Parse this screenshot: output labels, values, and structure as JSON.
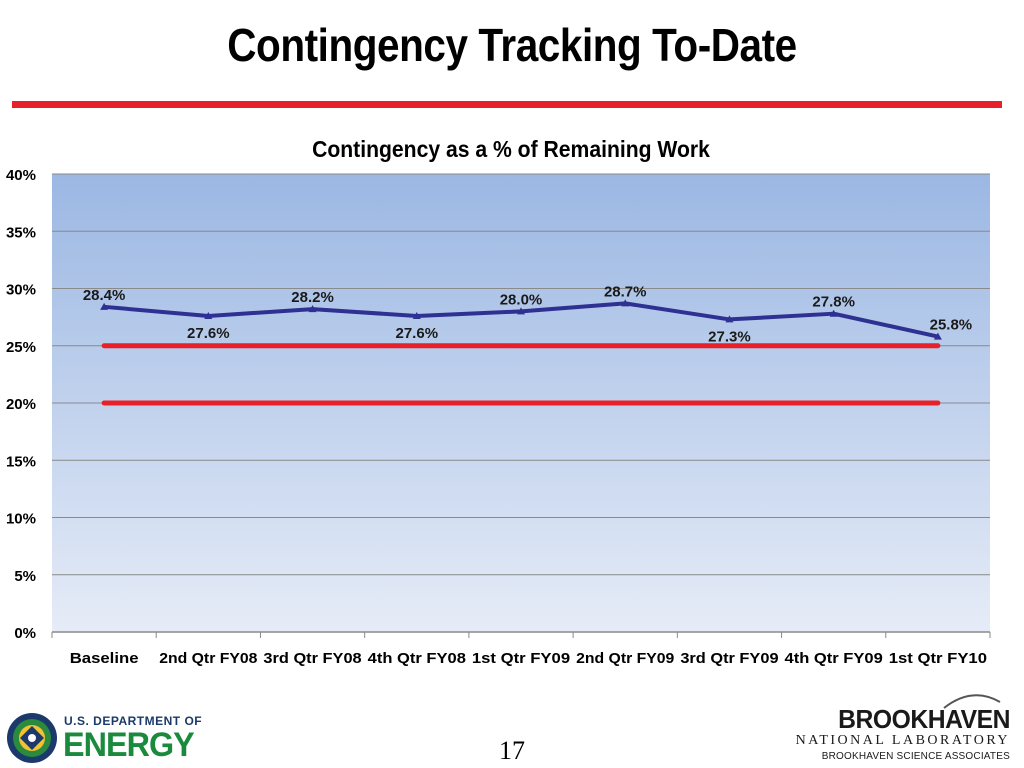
{
  "slide": {
    "title": "Contingency Tracking To-Date",
    "page_number": "17"
  },
  "footer": {
    "doe_line1": "U.S. DEPARTMENT OF",
    "doe_line2": "ENERGY",
    "bnl_name": "BROOKHAVEN",
    "bnl_sub": "NATIONAL LABORATORY",
    "bnl_assoc": "BROOKHAVEN SCIENCE ASSOCIATES"
  },
  "colors": {
    "series": "#2e3192",
    "threshold": "#e8202a",
    "plot_top": "#9bb7e3",
    "plot_bottom": "#e6ecf7",
    "title_rule": "#e8202a"
  },
  "chart_data": {
    "type": "line",
    "title": "Contingency as a % of Remaining Work",
    "categories": [
      "Baseline",
      "2nd Qtr FY08",
      "3rd Qtr FY08",
      "4th Qtr FY08",
      "1st Qtr FY09",
      "2nd Qtr FY09",
      "3rd Qtr FY09",
      "4th Qtr FY09",
      "1st Qtr FY10"
    ],
    "y_ticks": [
      "0%",
      "5%",
      "10%",
      "15%",
      "20%",
      "25%",
      "30%",
      "35%",
      "40%"
    ],
    "ylim": [
      0,
      40
    ],
    "grid": true,
    "series": [
      {
        "values": [
          28.4,
          27.6,
          28.2,
          27.6,
          28.0,
          28.7,
          27.3,
          27.8,
          25.8
        ],
        "labels": [
          "28.4%",
          "27.6%",
          "28.2%",
          "27.6%",
          "28.0%",
          "28.7%",
          "27.3%",
          "27.8%",
          "25.8%"
        ]
      }
    ],
    "reference_lines": [
      25,
      20
    ]
  }
}
